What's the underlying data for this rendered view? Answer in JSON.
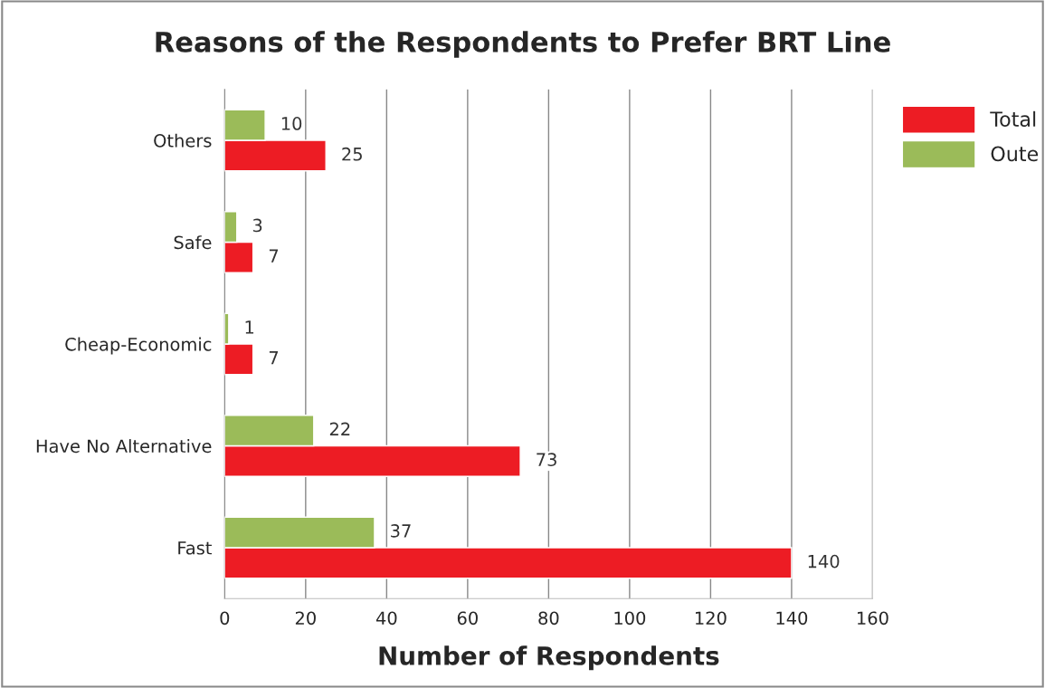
{
  "chart_data": {
    "type": "bar",
    "orientation": "horizontal",
    "title": "Reasons of the Respondents to Prefer BRT Line",
    "xlabel": "Number of Respondents",
    "categories": [
      "Others",
      "Safe",
      "Cheap-Economic",
      "Have No Alternative",
      "Fast"
    ],
    "series": [
      {
        "name": "Total",
        "color": "#ed1c24",
        "values": [
          25,
          7,
          7,
          73,
          140
        ]
      },
      {
        "name": "Oute",
        "color": "#9bbb59",
        "values": [
          10,
          3,
          1,
          22,
          37
        ]
      }
    ],
    "xlim": [
      0,
      160
    ],
    "xticks": [
      0,
      20,
      40,
      60,
      80,
      100,
      120,
      140,
      160
    ],
    "grid": "x",
    "legend": "top right",
    "data_labels": true
  }
}
